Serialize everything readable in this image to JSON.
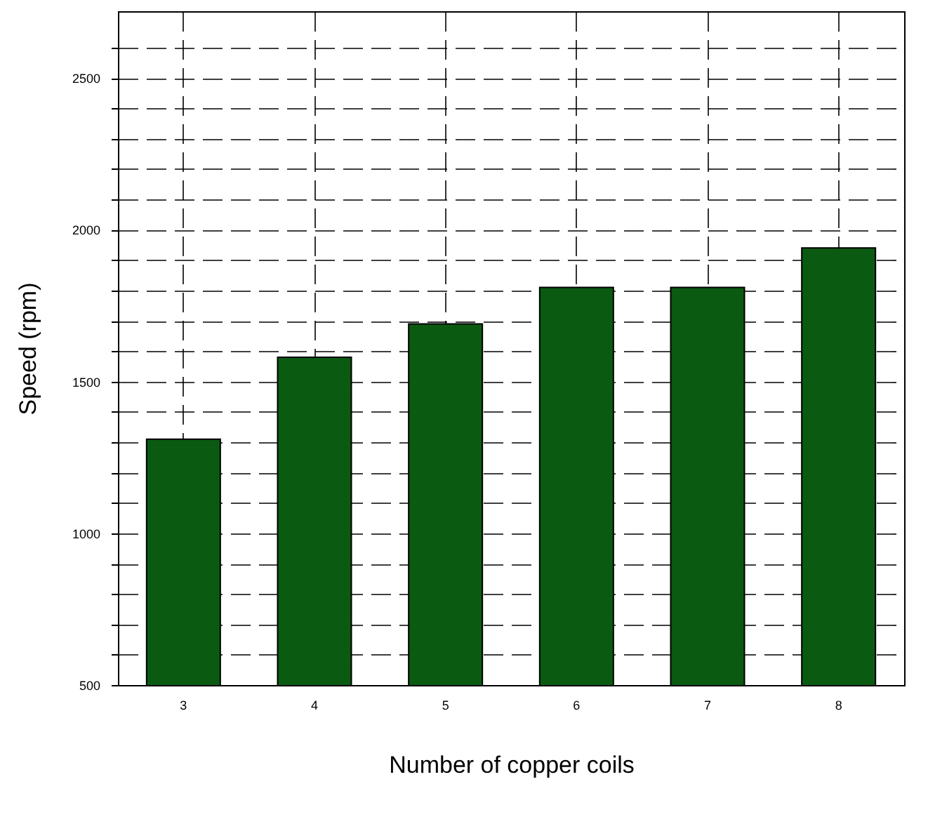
{
  "chart_data": {
    "type": "bar",
    "xlabel": "Number of copper coils",
    "ylabel": "Speed (rpm)",
    "categories": [
      "3",
      "4",
      "5",
      "6",
      "7",
      "8"
    ],
    "values": [
      1310,
      1580,
      1690,
      1810,
      1810,
      1940
    ],
    "color": "#0b5a12",
    "ylim": [
      500,
      2720
    ],
    "yticks": [
      500,
      {
        "value": 600,
        "label": null
      },
      {
        "value": 700,
        "label": null
      },
      {
        "value": 800,
        "label": null
      },
      {
        "value": 900,
        "label": null
      },
      1000,
      {
        "value": 1100,
        "label": null
      },
      {
        "value": 1200,
        "label": null
      },
      {
        "value": 1300,
        "label": null
      },
      {
        "value": 1400,
        "label": null
      },
      1500,
      {
        "value": 1600,
        "label": null
      },
      {
        "value": 1700,
        "label": null
      },
      {
        "value": 1800,
        "label": null
      },
      {
        "value": 1900,
        "label": null
      },
      2000,
      {
        "value": 2100,
        "label": null
      },
      {
        "value": 2200,
        "label": null
      },
      {
        "value": 2300,
        "label": null
      },
      {
        "value": 2400,
        "label": null
      },
      2500,
      {
        "value": 2600,
        "label": null
      }
    ],
    "grid": true
  }
}
